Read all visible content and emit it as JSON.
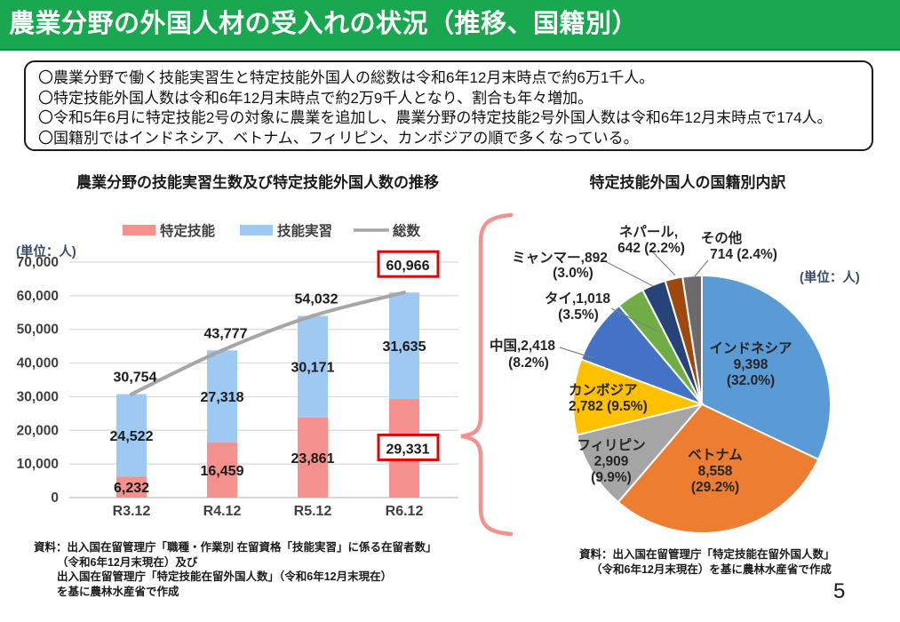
{
  "header": {
    "title": "農業分野の外国人材の受入れの状況（推移、国籍別）"
  },
  "summary": {
    "bullets": [
      "〇農業分野で働く技能実習生と特定技能外国人の総数は令和6年12月末時点で約6万1千人。",
      "〇特定技能外国人数は令和6年12月末時点で約2万9千人となり、割合も年々増加。",
      "〇令和5年6月に特定技能2号の対象に農業を追加し、農業分野の特定技能2号外国人数は令和6年12月末時点で174人。",
      "〇国籍別ではインドネシア、ベトナム、フィリピン、カンボジアの順で多くなっている。"
    ]
  },
  "chart_data": [
    {
      "type": "bar",
      "stacked": true,
      "title": "農業分野の技能実習生数及び特定技能外国人数の推移",
      "unit": "(単位：人)",
      "categories": [
        "R3.12",
        "R4.12",
        "R5.12",
        "R6.12"
      ],
      "series": [
        {
          "name": "特定技能",
          "kind": "bar",
          "color": "#f4908e",
          "values": [
            6232,
            16459,
            23861,
            29331
          ]
        },
        {
          "name": "技能実習",
          "kind": "bar",
          "color": "#9dc9f2",
          "values": [
            24522,
            27318,
            30171,
            31635
          ]
        },
        {
          "name": "総数",
          "kind": "line",
          "color": "#a6a6a6",
          "values": [
            30754,
            43777,
            54032,
            60966
          ]
        }
      ],
      "ylim": [
        0,
        70000
      ],
      "ytick_step": 10000,
      "grid": true,
      "legend_position": "top",
      "highlights": [
        {
          "category": "R6.12",
          "series": "総数",
          "value": 60966
        },
        {
          "category": "R6.12",
          "series": "特定技能",
          "value": 29331
        }
      ],
      "highlight_color": "#e60000"
    },
    {
      "type": "pie",
      "title": "特定技能外国人の国籍別内訳",
      "unit": "(単位：人)",
      "start_angle": "12時方向から時計回り",
      "slices": [
        {
          "label": "インドネシア",
          "value": 9398,
          "pct": 32.0,
          "color": "#5b9bd5",
          "display_lines": [
            "インドネシア",
            "9,398",
            "(32.0%)"
          ]
        },
        {
          "label": "ベトナム",
          "value": 8558,
          "pct": 29.2,
          "color": "#ed7d31",
          "display_lines": [
            "ベトナム",
            "8,558",
            "(29.2%)"
          ]
        },
        {
          "label": "フィリピン",
          "value": 2909,
          "pct": 9.9,
          "color": "#a5a5a5",
          "display_lines": [
            "フィリピン",
            "2,909",
            "(9.9%)"
          ]
        },
        {
          "label": "カンボジア",
          "value": 2782,
          "pct": 9.5,
          "color": "#ffc000",
          "display_lines": [
            "カンボジア",
            "2,782 (9.5%)"
          ]
        },
        {
          "label": "中国",
          "value": 2418,
          "pct": 8.2,
          "color": "#4472c4",
          "display_lines": [
            "中国,2,418",
            "(8.2%)"
          ]
        },
        {
          "label": "タイ",
          "value": 1018,
          "pct": 3.5,
          "color": "#70ad47",
          "display_lines": [
            "タイ,1,018",
            "(3.5%)"
          ]
        },
        {
          "label": "ミャンマー",
          "value": 892,
          "pct": 3.0,
          "color": "#264478",
          "display_lines": [
            "ミャンマー,892",
            "(3.0%)"
          ]
        },
        {
          "label": "ネパール",
          "value": 642,
          "pct": 2.2,
          "color": "#9e480e",
          "display_lines": [
            "ネパール,",
            "642 (2.2%)"
          ]
        },
        {
          "label": "その他",
          "value": 714,
          "pct": 2.4,
          "color": "#6b6b6b",
          "display_lines": [
            "その他",
            "714 (2.4%)"
          ]
        }
      ]
    }
  ],
  "sources": {
    "left": [
      "資料：出入国在留管理庁「職種・作業別 在留資格「技能実習」に係る在留者数」",
      "（令和6年12月末現在）及び",
      "出入国在留管理庁「特定技能在留外国人数」（令和6年12月末現在）",
      "を基に農林水産省で作成"
    ],
    "right": [
      "資料：出入国在留管理庁「特定技能在留外国人数」",
      "（令和6年12月末現在）を基に農林水産省で作成"
    ]
  },
  "page": {
    "number": "5"
  },
  "colors": {
    "header_green": "#19a750",
    "brace_pink": "#f2928f",
    "highlight_red": "#e60000",
    "axis_text": "#404040",
    "unit_text": "#3b4a63"
  }
}
